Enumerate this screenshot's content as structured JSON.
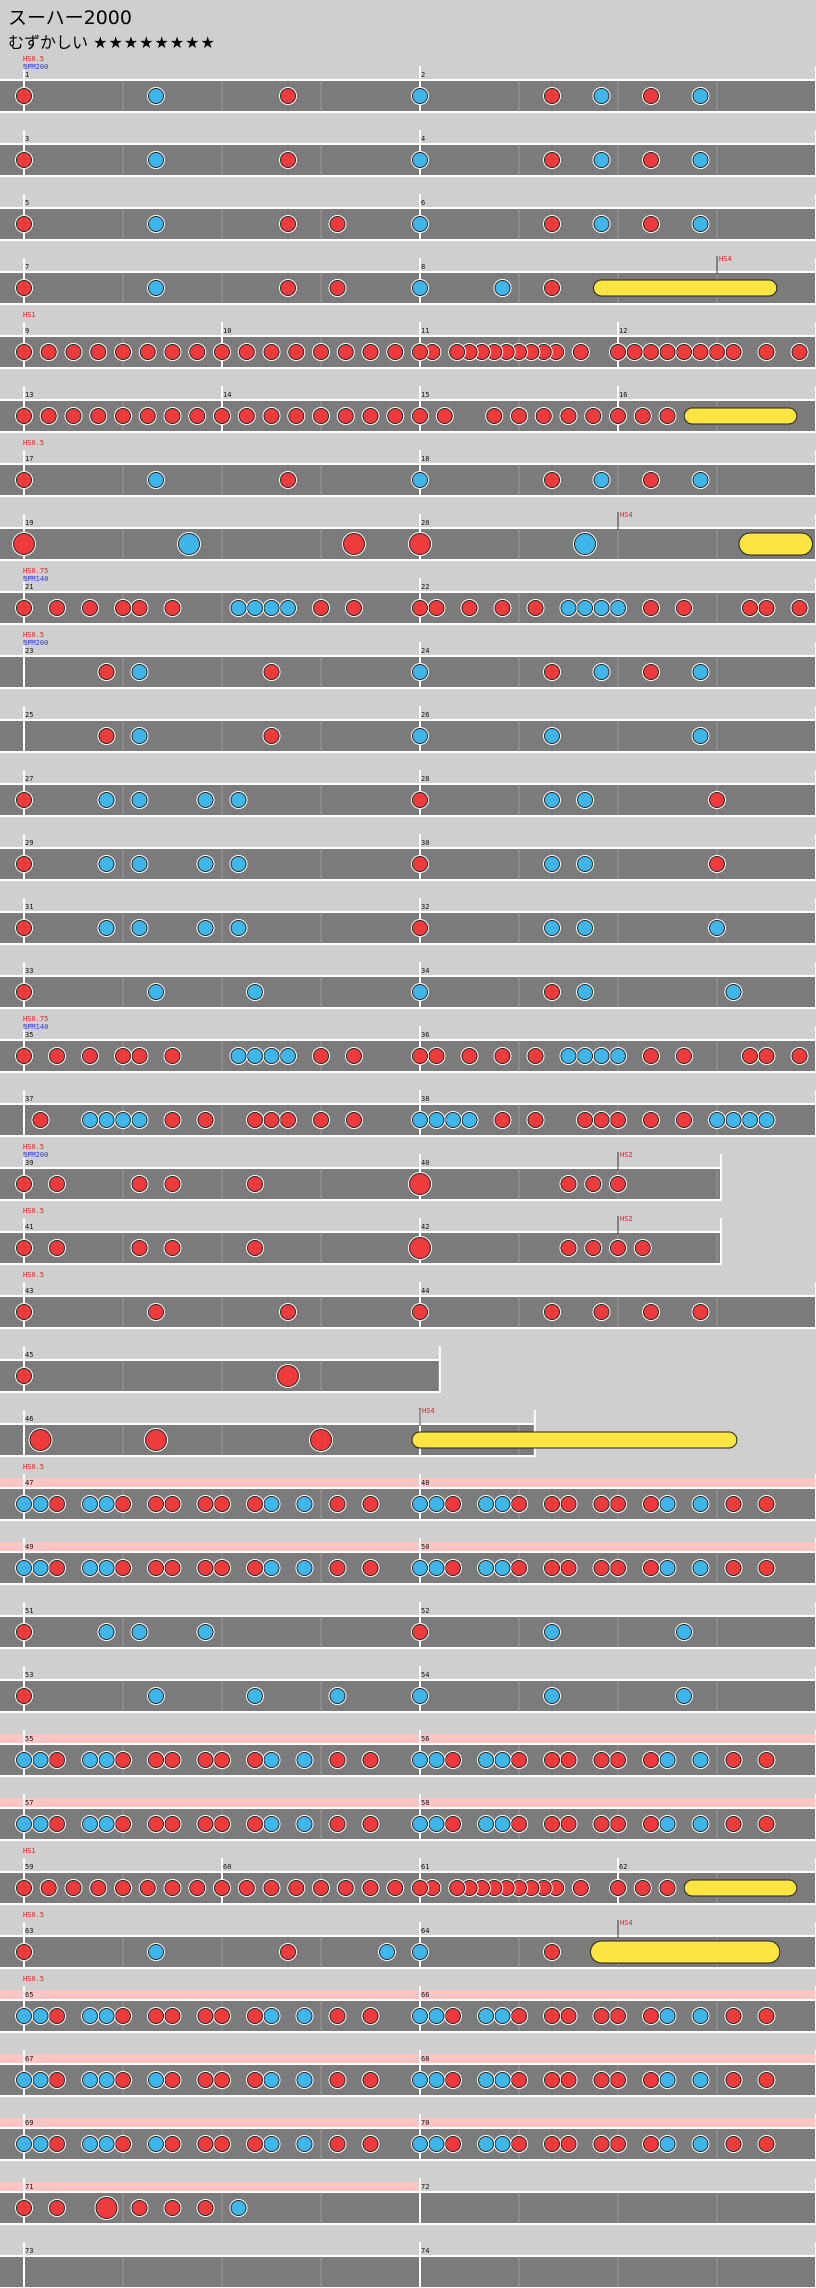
{
  "song_title": "スーハー2000",
  "difficulty_label": "むずかしい",
  "difficulty_stars": "★★★★★★★★",
  "chart_data": {
    "type": "taiko-fumen",
    "colors": {
      "don": "#ef3b3b",
      "ka": "#3fb6e9",
      "drumroll": "#fde541",
      "lane": "#7b7b7b",
      "gogo": "#ffc4c4",
      "hs_text": "#d82222",
      "bpm_text": "#2a3ecf"
    },
    "notes_legend": {
      "d": "don",
      "k": "ka",
      "D": "big don",
      "K": "big ka",
      "y": "drumroll",
      "Y": "big drumroll"
    },
    "rows": [
      {
        "bars": [
          {
            "n": "1",
            "notes": "d0000000k0000000d0000000"
          },
          {
            "n": "2",
            "notes": "k0000000d00k00d00k000000"
          }
        ],
        "hs": "HS0.5",
        "bpm": "BPM200"
      },
      {
        "bars": [
          {
            "n": "3",
            "notes": "d0000000k0000000d0000000"
          },
          {
            "n": "4",
            "notes": "k0000000d00k00d00k000000"
          }
        ]
      },
      {
        "bars": [
          {
            "n": "5",
            "notes": "d0000000k0000000d00d0000"
          },
          {
            "n": "6",
            "notes": "k0000000d00k00d00k000000"
          }
        ]
      },
      {
        "bars": [
          {
            "n": "7",
            "notes": "d0000000k0000000d00d0000"
          },
          {
            "n": "8",
            "notes": "k0000k00d00y000000000000"
          }
        ],
        "mark": {
          "bar": 1,
          "pos": 0.75,
          "text": "HS4"
        }
      },
      {
        "bars": [
          {
            "n": "9",
            "notes": "dddddddd"
          },
          {
            "n": "10",
            "notes": "dddddddd"
          },
          {
            "n": "11",
            "notes": "dd0ddddddddd0d00"
          },
          {
            "n": "12",
            "notes": "dddddddd0d0d"
          }
        ],
        "hs": "HS1"
      },
      {
        "bars": [
          {
            "n": "13",
            "notes": "dddddddd"
          },
          {
            "n": "14",
            "notes": "dddddddd"
          },
          {
            "n": "15",
            "notes": "dd0ddddd"
          },
          {
            "n": "16",
            "notes": "dddy0000"
          }
        ]
      },
      {
        "bars": [
          {
            "n": "17",
            "notes": "d0000000k0000000d0000000"
          },
          {
            "n": "18",
            "notes": "k0000000d00k00d00k000000"
          }
        ],
        "hs": "HS0.5"
      },
      {
        "bars": [
          {
            "n": "19",
            "notes": "D000000000K000000000D000"
          },
          {
            "n": "20",
            "notes": "D000000000K000000000Y000"
          }
        ],
        "mark": {
          "bar": 1,
          "pos": 0.5,
          "text": "HS4"
        }
      },
      {
        "bars": [
          {
            "n": "21",
            "notes": "d0d0d0dd0d000kkkk0d0d000"
          },
          {
            "n": "22",
            "notes": "dd0d0d0d0kkkk0d0d000dd0d"
          }
        ],
        "hs": "HS0.75",
        "bpm": "BPM140"
      },
      {
        "bars": [
          {
            "n": "23",
            "notes": "00000d0k0000000d00000000"
          },
          {
            "n": "24",
            "notes": "k0000000d00k00d00k000000"
          }
        ],
        "hs": "HS0.5",
        "bpm": "BPM200"
      },
      {
        "bars": [
          {
            "n": "25",
            "notes": "00000d0k0000000d00000000"
          },
          {
            "n": "26",
            "notes": "k0000000k00000000k000000"
          }
        ]
      },
      {
        "bars": [
          {
            "n": "27",
            "notes": "d0000k0k000k0k0000000000"
          },
          {
            "n": "28",
            "notes": "d0000000k0k0000000d00000"
          }
        ]
      },
      {
        "bars": [
          {
            "n": "29",
            "notes": "d0000k0k000k0k0000000000"
          },
          {
            "n": "30",
            "notes": "d0000000k0k0000000d00000"
          }
        ]
      },
      {
        "bars": [
          {
            "n": "31",
            "notes": "d0000k0k000k0k0000000000"
          },
          {
            "n": "32",
            "notes": "d0000000k0k0000000k00000"
          }
        ]
      },
      {
        "bars": [
          {
            "n": "33",
            "notes": "d0000000k00000k000000000"
          },
          {
            "n": "34",
            "notes": "k0000000d0k00000000k0000"
          }
        ]
      },
      {
        "bars": [
          {
            "n": "35",
            "notes": "d0d0d0dd0d000kkkk0d0d000"
          },
          {
            "n": "36",
            "notes": "dd0d0d0d0kkkk0d0d000dd0d"
          }
        ],
        "hs": "HS0.75",
        "bpm": "BPM140"
      },
      {
        "bars": [
          {
            "n": "37",
            "notes": "0d00kkkk0d0d00ddd0d0d000"
          },
          {
            "n": "38",
            "notes": "kkkk0d0d00ddd0d0d0kkkk00"
          }
        ]
      },
      {
        "bars": [
          {
            "n": "39",
            "notes": "d0d0000d0d0000d000000000"
          },
          {
            "n": "40",
            "notes": "D00000ddd0000000"
          }
        ],
        "width": 0.88,
        "hs": "HS0.5",
        "bpm": "BPM200",
        "mark": {
          "bar": 1,
          "pos": 0.5,
          "text": "HS2"
        }
      },
      {
        "bars": [
          {
            "n": "41",
            "notes": "d0d0000d0d0000d000000000"
          },
          {
            "n": "42",
            "notes": "D00000dddd000000"
          }
        ],
        "width": 0.88,
        "hs": "HS0.5",
        "mark": {
          "bar": 1,
          "pos": 0.5,
          "text": "HS2"
        }
      },
      {
        "bars": [
          {
            "n": "43",
            "notes": "d0000000d0000000d0000000"
          },
          {
            "n": "44",
            "notes": "d0000000d00d00d00d000000"
          }
        ],
        "hs": "HS0.5"
      },
      {
        "bars": [
          {
            "n": "45",
            "notes": "d000000000000000D0000000"
          }
        ],
        "width": 0.525
      },
      {
        "bars": [
          {
            "n": "46",
            "notes": "0D000000D000000000D00000"
          },
          {
            "n": "",
            "notes": "y000000000000000"
          }
        ],
        "width": 0.645,
        "mark": {
          "bar": 1,
          "pos": 0,
          "text": "HS4"
        }
      },
      {
        "bars": [
          {
            "n": "47",
            "notes": "kkd0kkd0dd0dd0dk0k0d0d00"
          },
          {
            "n": "48",
            "notes": "kkd0kkd0dd0dd0dk0k0d0d00"
          }
        ],
        "gogo": true,
        "hs": "HS0.5"
      },
      {
        "bars": [
          {
            "n": "49",
            "notes": "kkd0kkd0dd0dd0dk0k0d0d00"
          },
          {
            "n": "50",
            "notes": "kkd0kkd0dd0dd0dk0k0d0d00"
          }
        ],
        "gogo": true
      },
      {
        "bars": [
          {
            "n": "51",
            "notes": "d0000k0k000k000000000000"
          },
          {
            "n": "52",
            "notes": "d0000000k0000000k0000000"
          }
        ]
      },
      {
        "bars": [
          {
            "n": "53",
            "notes": "d0000000k00000k0000k0000"
          },
          {
            "n": "54",
            "notes": "k0000000k0000000k0000000"
          }
        ]
      },
      {
        "bars": [
          {
            "n": "55",
            "notes": "kkd0kkd0dd0dd0dk0k0d0d00"
          },
          {
            "n": "56",
            "notes": "kkd0kkd0dd0dd0dk0k0d0d00"
          }
        ],
        "gogo": true
      },
      {
        "bars": [
          {
            "n": "57",
            "notes": "kkd0kkd0dd0dd0dk0k0d0d00"
          },
          {
            "n": "58",
            "notes": "kkd0kkd0dd0dd0dk0k0d0d00"
          }
        ],
        "gogo": true
      },
      {
        "bars": [
          {
            "n": "59",
            "notes": "dddddddd"
          },
          {
            "n": "60",
            "notes": "dddddddd"
          },
          {
            "n": "61",
            "notes": "dd0ddddddddd0d00"
          },
          {
            "n": "62",
            "notes": "dddy0000"
          }
        ],
        "hs": "HS1"
      },
      {
        "bars": [
          {
            "n": "63",
            "notes": "d0000000k0000000d00000k0"
          },
          {
            "n": "64",
            "notes": "k0000000d00Y000000000000"
          }
        ],
        "hs": "HS0.5",
        "mark": {
          "bar": 1,
          "pos": 0.5,
          "text": "HS4"
        }
      },
      {
        "bars": [
          {
            "n": "65",
            "notes": "kkd0kkd0dd0dd0dk0k0d0d00"
          },
          {
            "n": "66",
            "notes": "kkd0kkd0dd0dd0dk0k0d0d00"
          }
        ],
        "gogo": true,
        "hs": "HS0.5"
      },
      {
        "bars": [
          {
            "n": "67",
            "notes": "kkd0kkd0kd0dd0dk0k0d0d00"
          },
          {
            "n": "68",
            "notes": "kkd0kkd0dd0dd0dk0k0d0d00"
          }
        ],
        "gogo": true
      },
      {
        "bars": [
          {
            "n": "69",
            "notes": "kkd0kkd0kd0dd0dk0k0d0d00"
          },
          {
            "n": "70",
            "notes": "kkd0kkd0dd0dd0dk0k0d0d00"
          }
        ],
        "gogo": true
      },
      {
        "bars": [
          {
            "n": "71",
            "notes": "d0d00D0d0d0d0k0000000000"
          },
          {
            "n": "72",
            "notes": "000000000000000000000000"
          }
        ],
        "gogo_first_bar": true
      },
      {
        "bars": [
          {
            "n": "73",
            "notes": "000000000000000000000000"
          },
          {
            "n": "74",
            "notes": "000000000000000000000000"
          }
        ]
      }
    ]
  }
}
